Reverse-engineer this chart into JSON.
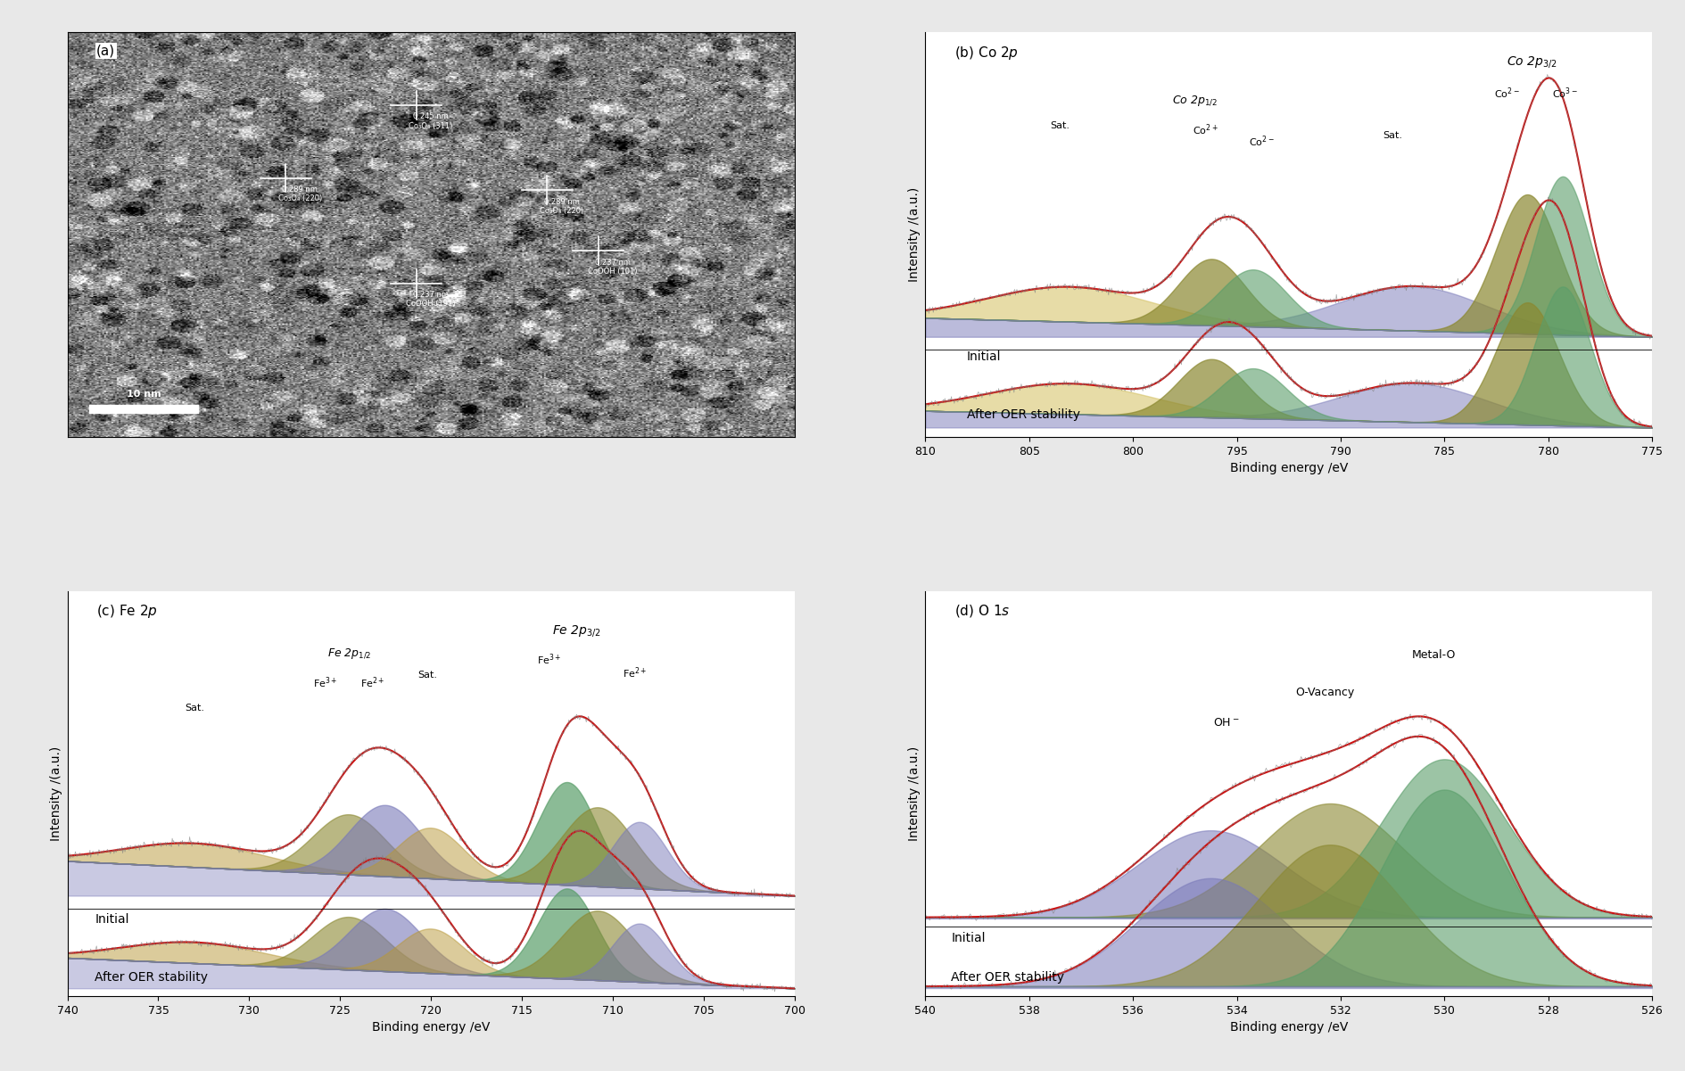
{
  "fig_width": 18.9,
  "fig_height": 12.01,
  "background_color": "#e8e8e8",
  "panel_bg": "#ffffff",
  "colors": {
    "green": "#5a9e6a",
    "olive": "#8B8830",
    "purple": "#7878b8",
    "red_fit": "#cc1111",
    "blue_bg": "#4455bb",
    "tan": "#b89838",
    "sat_yellow": "#d4c060"
  },
  "co2p": {
    "xmin": 810,
    "xmax": 775,
    "xticks": [
      810,
      805,
      800,
      795,
      790,
      785,
      780,
      775
    ],
    "xlabel": "Binding energy /eV",
    "ylabel": "Intensity /(a.u.)",
    "label": "(b) Co 2$p$",
    "initial_label": "Initial",
    "after_label": "After OER stability"
  },
  "fe2p": {
    "xmin": 740,
    "xmax": 700,
    "xticks": [
      740,
      735,
      730,
      725,
      720,
      715,
      710,
      705,
      700
    ],
    "xlabel": "Binding energy /eV",
    "ylabel": "Intensity /(a.u.)",
    "label": "(c) Fe 2$p$",
    "initial_label": "Initial",
    "after_label": "After OER stability"
  },
  "o1s": {
    "xmin": 540,
    "xmax": 526,
    "xticks": [
      540,
      538,
      536,
      534,
      532,
      530,
      528,
      526
    ],
    "xlabel": "Binding energy /eV",
    "ylabel": "Intensity /(a.u.)",
    "label": "(d) O 1$s$",
    "initial_label": "Initial",
    "after_label": "After OER stability"
  }
}
